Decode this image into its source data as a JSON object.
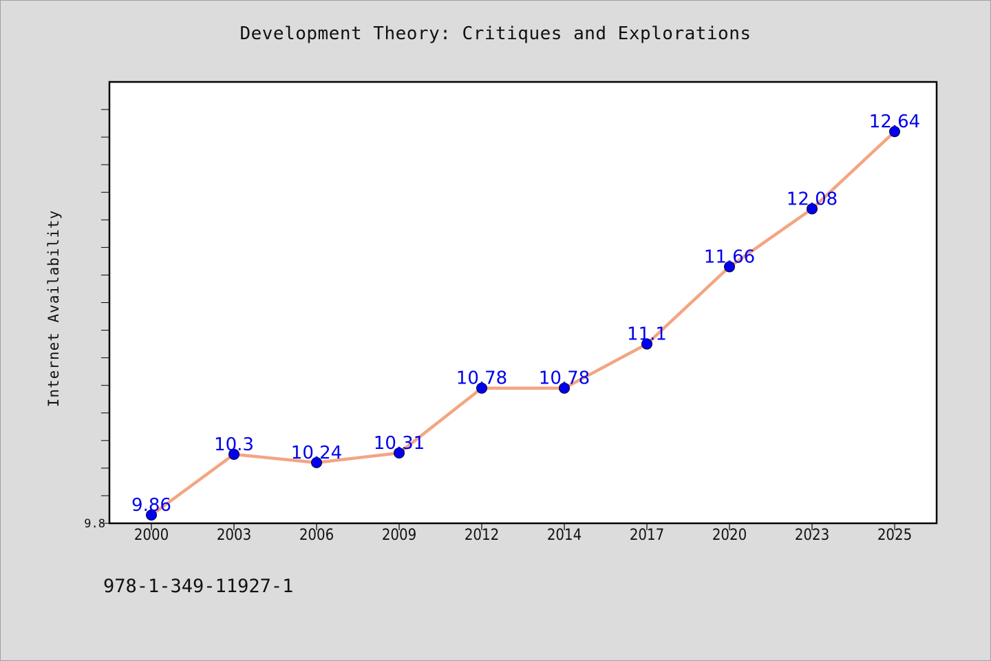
{
  "chart_data": {
    "type": "line",
    "title": "Development Theory: Critiques and Explorations",
    "xlabel": "",
    "ylabel": "Internet Availability",
    "categories": [
      "2000",
      "2003",
      "2006",
      "2009",
      "2012",
      "2014",
      "2017",
      "2020",
      "2023",
      "2025"
    ],
    "series": [
      {
        "values": [
          9.86,
          10.3,
          10.24,
          10.31,
          10.78,
          10.78,
          11.1,
          11.66,
          12.08,
          12.64
        ]
      }
    ],
    "data_labels": [
      "9.86",
      "10.3",
      "10.24",
      "10.31",
      "10.78",
      "10.78",
      "11.1",
      "11.66",
      "12.08",
      "12.64"
    ],
    "ylim": [
      9.8,
      13.0
    ],
    "y_tick_labels": [
      "9.8"
    ],
    "grid": false,
    "legend": "none",
    "colors": {
      "line": "#f4a582",
      "marker": "#0000ee",
      "label": "#0000ee",
      "background": "#dcdcdc",
      "plot_background": "#ffffff"
    }
  },
  "footnote": "978-1-349-11927-1"
}
